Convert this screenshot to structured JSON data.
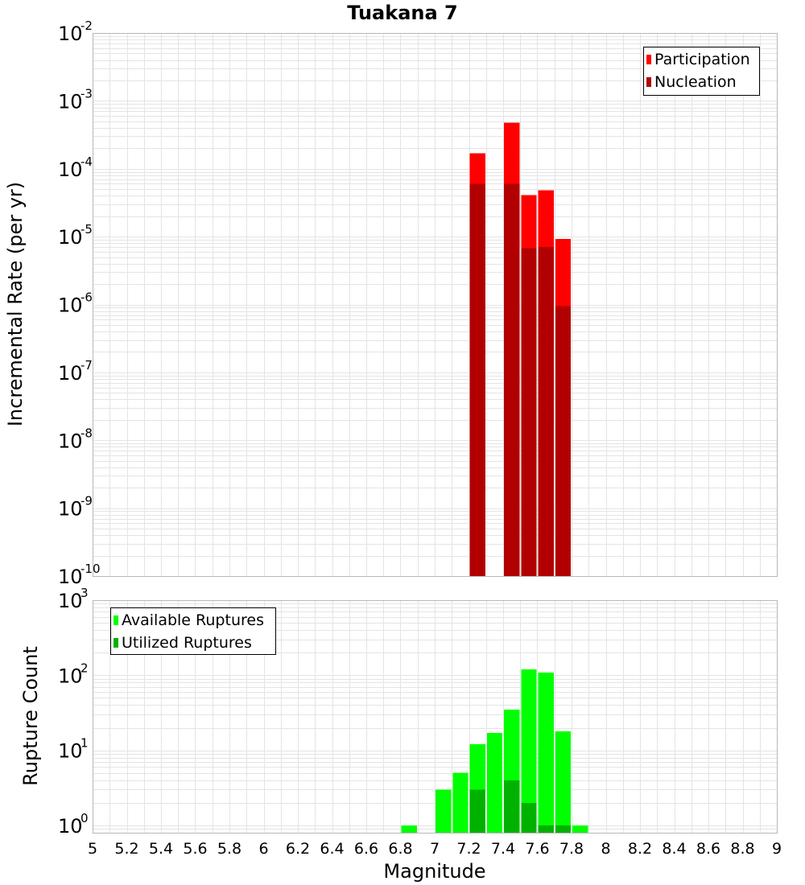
{
  "chart_data": [
    {
      "type": "bar",
      "title": "Tuakana 7",
      "xlabel": "",
      "ylabel": "Incremental Rate (per yr)",
      "yscale": "log",
      "ylim": [
        1e-10,
        0.01
      ],
      "xlim": [
        5,
        9
      ],
      "grid": true,
      "legend_position": "top-right",
      "bin_width": 0.1,
      "y_ticks": [
        {
          "base": "10",
          "exp": "-2"
        },
        {
          "base": "10",
          "exp": "-3"
        },
        {
          "base": "10",
          "exp": "-4"
        },
        {
          "base": "10",
          "exp": "-5"
        },
        {
          "base": "10",
          "exp": "-6"
        },
        {
          "base": "10",
          "exp": "-7"
        },
        {
          "base": "10",
          "exp": "-8"
        },
        {
          "base": "10",
          "exp": "-9"
        },
        {
          "base": "10",
          "exp": "-10"
        }
      ],
      "series": [
        {
          "name": "Participation",
          "color": "#ff0000",
          "points": [
            {
              "x": 7.25,
              "y": 0.00017
            },
            {
              "x": 7.45,
              "y": 0.00048
            },
            {
              "x": 7.55,
              "y": 4.1e-05
            },
            {
              "x": 7.65,
              "y": 4.8e-05
            },
            {
              "x": 7.75,
              "y": 9.2e-06
            }
          ]
        },
        {
          "name": "Nucleation",
          "color": "#b20000",
          "points": [
            {
              "x": 7.25,
              "y": 6e-05
            },
            {
              "x": 7.45,
              "y": 6e-05
            },
            {
              "x": 7.55,
              "y": 6.8e-06
            },
            {
              "x": 7.65,
              "y": 7e-06
            },
            {
              "x": 7.75,
              "y": 9.5e-07
            }
          ]
        }
      ]
    },
    {
      "type": "bar",
      "title": "",
      "xlabel": "Magnitude",
      "ylabel": "Rupture Count",
      "yscale": "log",
      "ylim": [
        0.8,
        1000
      ],
      "xlim": [
        5,
        9
      ],
      "grid": true,
      "legend_position": "top-left",
      "bin_width": 0.1,
      "y_ticks": [
        {
          "value": 1000,
          "base": "10",
          "exp": "3"
        },
        {
          "value": 100,
          "base": "10",
          "exp": "2"
        },
        {
          "value": 10,
          "base": "10",
          "exp": "1"
        },
        {
          "value": 1,
          "base": "10",
          "exp": "0"
        }
      ],
      "x_ticks": [
        "5",
        "5.2",
        "5.4",
        "5.6",
        "5.8",
        "6",
        "6.2",
        "6.4",
        "6.6",
        "6.8",
        "7",
        "7.2",
        "7.4",
        "7.6",
        "7.8",
        "8",
        "8.2",
        "8.4",
        "8.6",
        "8.8",
        "9"
      ],
      "series": [
        {
          "name": "Available Ruptures",
          "color": "#00ff00",
          "points": [
            {
              "x": 6.85,
              "y": 1
            },
            {
              "x": 7.05,
              "y": 3
            },
            {
              "x": 7.15,
              "y": 5
            },
            {
              "x": 7.25,
              "y": 12
            },
            {
              "x": 7.35,
              "y": 17
            },
            {
              "x": 7.45,
              "y": 35
            },
            {
              "x": 7.55,
              "y": 120
            },
            {
              "x": 7.65,
              "y": 108
            },
            {
              "x": 7.75,
              "y": 18
            },
            {
              "x": 7.85,
              "y": 1
            }
          ]
        },
        {
          "name": "Utilized Ruptures",
          "color": "#00b200",
          "points": [
            {
              "x": 7.25,
              "y": 3
            },
            {
              "x": 7.45,
              "y": 4
            },
            {
              "x": 7.55,
              "y": 2
            },
            {
              "x": 7.65,
              "y": 1
            },
            {
              "x": 7.75,
              "y": 1
            }
          ]
        }
      ]
    }
  ]
}
